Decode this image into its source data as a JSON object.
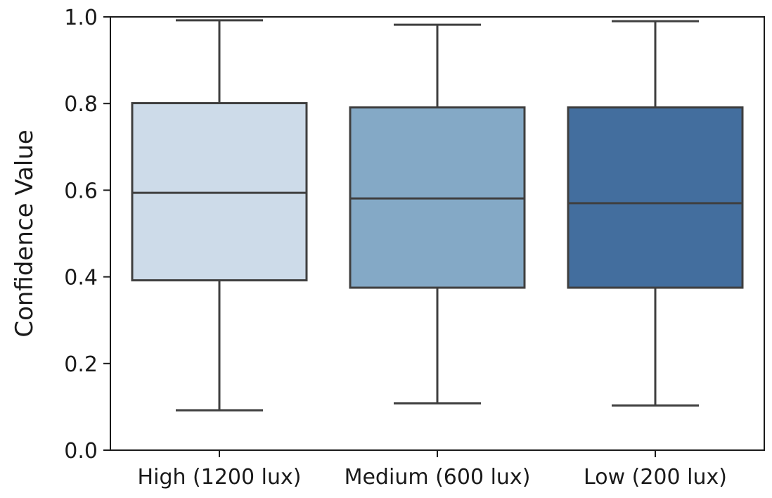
{
  "chart_data": {
    "type": "boxplot",
    "title": "",
    "xlabel": "",
    "ylabel": "Confidence Value",
    "ylim": [
      0.0,
      1.0
    ],
    "yticks": [
      "0.0",
      "0.2",
      "0.4",
      "0.6",
      "0.8",
      "1.0"
    ],
    "grid": false,
    "categories": [
      "High (1200 lux)",
      "Medium (600 lux)",
      "Low (200 lux)"
    ],
    "boxes": [
      {
        "category": "High (1200 lux)",
        "whisker_low": 0.092,
        "q1": 0.392,
        "median": 0.594,
        "q3": 0.801,
        "whisker_high": 0.992,
        "color": "#cddbe9"
      },
      {
        "category": "Medium (600 lux)",
        "whisker_low": 0.108,
        "q1": 0.375,
        "median": 0.581,
        "q3": 0.791,
        "whisker_high": 0.982,
        "color": "#84a9c6"
      },
      {
        "category": "Low (200 lux)",
        "whisker_low": 0.103,
        "q1": 0.375,
        "median": 0.57,
        "q3": 0.791,
        "whisker_high": 0.99,
        "color": "#436e9e"
      }
    ],
    "line_color": "#3f3f3f"
  }
}
